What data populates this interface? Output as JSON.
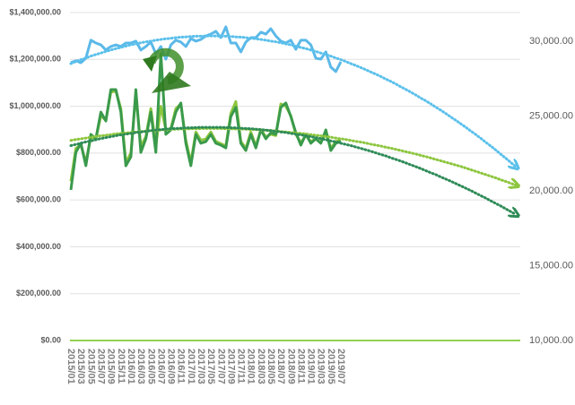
{
  "chart_data": {
    "type": "line",
    "categories": [
      "2015/01",
      null,
      "2015/03",
      null,
      "2015/05",
      null,
      "2015/07",
      null,
      "2015/09",
      null,
      "2015/11",
      null,
      "2016/01",
      null,
      "2016/03",
      null,
      "2016/05",
      null,
      "2016/07",
      null,
      "2016/09",
      null,
      "2016/11",
      null,
      "2017/01",
      null,
      "2017/03",
      null,
      "2017/05",
      null,
      "2017/07",
      null,
      "2017/09",
      null,
      "2017/11",
      null,
      "2018/01",
      null,
      "2018/03",
      null,
      "2018/05",
      null,
      "2018/07",
      null,
      "2018/09",
      null,
      "2018/11",
      null,
      "2019/01",
      null,
      "2019/03",
      null,
      "2019/05",
      null,
      "2019/07",
      null,
      null,
      null,
      null,
      null,
      null,
      null,
      null,
      null,
      null,
      null,
      null,
      null,
      null,
      null,
      null,
      null,
      null,
      null,
      null,
      null,
      null,
      null,
      null,
      null,
      null,
      null,
      null,
      null,
      null,
      null,
      null,
      null,
      null,
      null
    ],
    "ylim": [
      0,
      1400000
    ],
    "yticks": [
      {
        "value": 0,
        "label": "$0.00"
      },
      {
        "value": 200000,
        "label": "$200,000.00"
      },
      {
        "value": 400000,
        "label": "$400,000.00"
      },
      {
        "value": 600000,
        "label": "$600,000.00"
      },
      {
        "value": 800000,
        "label": "$800,000.00"
      },
      {
        "value": 1000000,
        "label": "$1,000,000.00"
      },
      {
        "value": 1200000,
        "label": "$1,200,000.00"
      },
      {
        "value": 1400000,
        "label": "$1,400,000.00"
      }
    ],
    "y2lim": [
      10000,
      31916
    ],
    "y2ticks": [
      {
        "value": 10000,
        "label": "10,000.00"
      },
      {
        "value": 15000,
        "label": "15,000.00"
      },
      {
        "value": 20000,
        "label": "20,000.00"
      },
      {
        "value": 25000,
        "label": "25,000.00"
      },
      {
        "value": 30000,
        "label": "30,000.00"
      }
    ],
    "grid": true,
    "axis_color": "#92d050",
    "series": [
      {
        "color": "#5bb9e8",
        "dash": "solid",
        "values": [
          1186000,
          1194000,
          1186000,
          1205000,
          1282000,
          1270000,
          1262000,
          1240000,
          1255000,
          1262000,
          1255000,
          1270000,
          1270000,
          1278000,
          1240000,
          1255000,
          1274000,
          1224000,
          1255000,
          1201000,
          1262000,
          1282000,
          1274000,
          1255000,
          1289000,
          1278000,
          1285000,
          1300000,
          1308000,
          1320000,
          1293000,
          1339000,
          1270000,
          1270000,
          1232000,
          1274000,
          1293000,
          1293000,
          1316000,
          1308000,
          1331000,
          1300000,
          1278000,
          1270000,
          1282000,
          1243000,
          1282000,
          1282000,
          1262000,
          1205000,
          1201000,
          1232000,
          1167000,
          1148000,
          1190000,
          null,
          null,
          null,
          null,
          null,
          null,
          null,
          null,
          null,
          null,
          null,
          null,
          null,
          null,
          null,
          null,
          null,
          null,
          null,
          null,
          null,
          null,
          null,
          null,
          null,
          null,
          null,
          null,
          null,
          null,
          null,
          null,
          null,
          null,
          null
        ]
      },
      {
        "color": "#8dc63f",
        "dash": "solid",
        "values": [
          680000,
          820000,
          835000,
          760000,
          870000,
          860000,
          960000,
          940000,
          1060000,
          1065000,
          990000,
          760000,
          800000,
          1050000,
          830000,
          870000,
          990000,
          830000,
          1000000,
          900000,
          905000,
          990000,
          1010000,
          855000,
          760000,
          890000,
          855000,
          860000,
          890000,
          850000,
          840000,
          830000,
          970000,
          1020000,
          850000,
          820000,
          890000,
          830000,
          900000,
          870000,
          880000,
          875000,
          1010000,
          1000000,
          960000,
          880000,
          845000,
          875000,
          850000,
          860000,
          845000,
          890000,
          820000,
          850000,
          855000,
          null,
          null,
          null,
          null,
          null,
          null,
          null,
          null,
          null,
          null,
          null,
          null,
          null,
          null,
          null,
          null,
          null,
          null,
          null,
          null,
          null,
          null,
          null,
          null,
          null,
          null,
          null,
          null,
          null,
          null,
          null,
          null,
          null,
          null,
          null
        ]
      },
      {
        "color": "#3a9a4c",
        "dash": "solid",
        "values": [
          643000,
          803000,
          842000,
          746000,
          880000,
          861000,
          975000,
          937000,
          1071000,
          1071000,
          975000,
          746000,
          784000,
          1071000,
          803000,
          861000,
          975000,
          803000,
          1224000,
          880000,
          899000,
          975000,
          1014000,
          842000,
          746000,
          880000,
          842000,
          849000,
          880000,
          842000,
          834000,
          822000,
          956000,
          995000,
          842000,
          811000,
          880000,
          822000,
          899000,
          861000,
          887000,
          880000,
          995000,
          1014000,
          956000,
          887000,
          834000,
          880000,
          842000,
          861000,
          842000,
          899000,
          811000,
          842000,
          850000,
          null,
          null,
          null,
          null,
          null,
          null,
          null,
          null,
          null,
          null,
          null,
          null,
          null,
          null,
          null,
          null,
          null,
          null,
          null,
          null,
          null,
          null,
          null,
          null,
          null,
          null,
          null,
          null,
          null,
          null,
          null,
          null,
          null,
          null,
          null
        ]
      },
      {
        "color": "#5bc0eb",
        "dash": "dotted",
        "values": [
          1182000,
          1191000,
          1199000,
          1206000,
          1214000,
          1221000,
          1227000,
          1234000,
          1240000,
          1246000,
          1251000,
          1257000,
          1262000,
          1266000,
          1271000,
          1275000,
          1278000,
          1282000,
          1285000,
          1288000,
          1290000,
          1293000,
          1295000,
          1296000,
          1298000,
          1299000,
          1299000,
          1300000,
          1300000,
          1300000,
          1299000,
          1299000,
          1298000,
          1296000,
          1295000,
          1293000,
          1290000,
          1288000,
          1285000,
          1282000,
          1278000,
          1275000,
          1271000,
          1266000,
          1262000,
          1257000,
          1251000,
          1246000,
          1240000,
          1234000,
          1227000,
          1221000,
          1214000,
          1206000,
          1199000,
          1191000,
          1182000,
          1174000,
          1165000,
          1156000,
          1146000,
          1137000,
          1127000,
          1116000,
          1106000,
          1095000,
          1083000,
          1072000,
          1060000,
          1048000,
          1035000,
          1023000,
          1010000,
          996000,
          983000,
          969000,
          954000,
          940000,
          925000,
          910000,
          894000,
          879000,
          863000,
          846000,
          830000,
          813000,
          795000,
          778000,
          760000,
          742000
        ]
      },
      {
        "color": "#8dc63f",
        "dash": "dotted",
        "values": [
          854000,
          858000,
          861000,
          864000,
          868000,
          871000,
          874000,
          876000,
          879000,
          882000,
          884000,
          886000,
          888000,
          890000,
          892000,
          894000,
          896000,
          897000,
          899000,
          900000,
          901000,
          902000,
          903000,
          903000,
          904000,
          904000,
          905000,
          905000,
          905000,
          905000,
          905000,
          904000,
          904000,
          903000,
          903000,
          902000,
          901000,
          900000,
          899000,
          897000,
          896000,
          894000,
          892000,
          890000,
          888000,
          886000,
          884000,
          882000,
          879000,
          876000,
          874000,
          871000,
          868000,
          864000,
          861000,
          858000,
          854000,
          850000,
          847000,
          843000,
          838000,
          834000,
          830000,
          825000,
          821000,
          816000,
          811000,
          806000,
          801000,
          796000,
          790000,
          785000,
          779000,
          773000,
          767000,
          761000,
          755000,
          749000,
          743000,
          736000,
          729000,
          722000,
          715000,
          708000,
          701000,
          694000,
          686000,
          679000,
          671000,
          663000
        ]
      },
      {
        "color": "#2e8b57",
        "dash": "dotted",
        "values": [
          832000,
          837000,
          842000,
          848000,
          852000,
          857000,
          862000,
          866000,
          870000,
          874000,
          878000,
          881000,
          884000,
          888000,
          890000,
          893000,
          896000,
          898000,
          900000,
          902000,
          904000,
          905000,
          906000,
          908000,
          908000,
          909000,
          910000,
          910000,
          910000,
          910000,
          910000,
          909000,
          908000,
          908000,
          906000,
          905000,
          904000,
          902000,
          900000,
          898000,
          896000,
          893000,
          890000,
          888000,
          884000,
          881000,
          878000,
          874000,
          870000,
          866000,
          862000,
          857000,
          852000,
          848000,
          842000,
          837000,
          832000,
          826000,
          820000,
          814000,
          808000,
          801000,
          794000,
          788000,
          780000,
          773000,
          766000,
          758000,
          750000,
          742000,
          734000,
          725000,
          716000,
          708000,
          698000,
          689000,
          680000,
          670000,
          660000,
          650000,
          640000,
          629000,
          618000,
          608000,
          596000,
          585000,
          574000,
          562000,
          550000,
          538000
        ]
      }
    ]
  }
}
